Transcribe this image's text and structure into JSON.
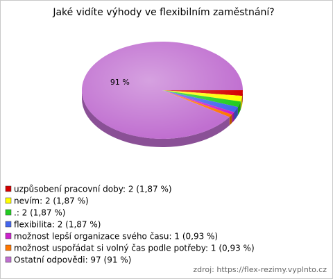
{
  "chart_data": {
    "type": "pie",
    "title": "Jaké vidíte výhody ve flexibilním zaměstnání?",
    "categories": [
      "uzpůsobení pracovní doby: 2 (1,87 %)",
      "nevím: 2 (1,87 %)",
      ".: 2 (1,87 %)",
      "flexibilita: 2 (1,87 %)",
      "možnost lepší organizace svého času: 1 (0,93 %)",
      "možnost uspořádat si volný čas podle potřeby: 1 (0,93 %)",
      "Ostatní odpovědi: 97 (91 %)"
    ],
    "values": [
      1.87,
      1.87,
      1.87,
      1.87,
      0.93,
      0.93,
      91
    ],
    "value_labels": [
      null,
      null,
      null,
      null,
      null,
      null,
      "91 %"
    ],
    "colors": [
      "#d40000",
      "#ffff00",
      "#22cc22",
      "#4466ee",
      "#cc22cc",
      "#ff7700",
      "#c06fd0"
    ],
    "source": "zdroj: https://flex-rezimy.vyplnto.cz"
  }
}
